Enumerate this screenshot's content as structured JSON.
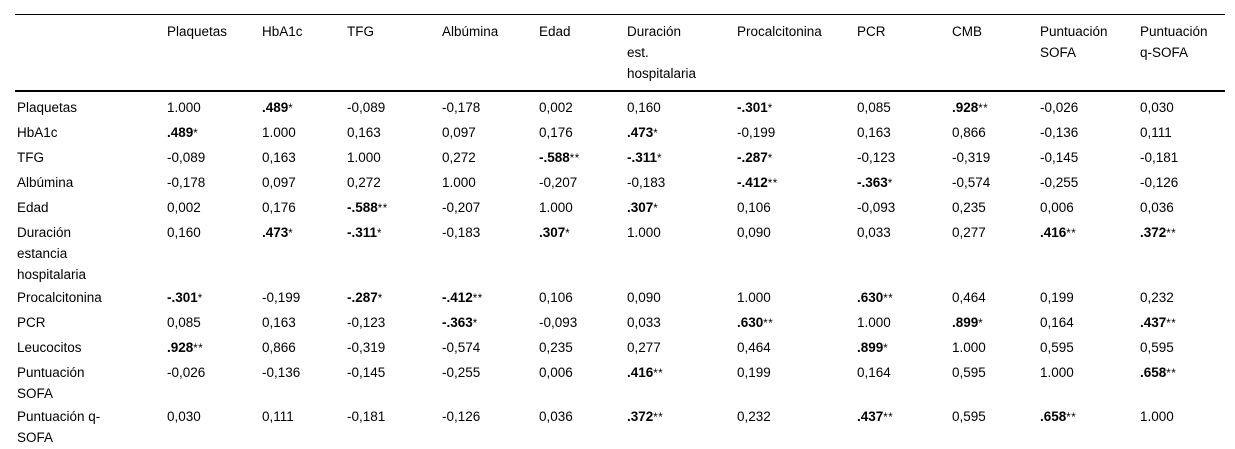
{
  "table": {
    "columns": [
      "",
      "Plaquetas",
      "HbA1c",
      "TFG",
      "Albúmina",
      "Edad",
      "Duración est. hospitalaria",
      "Procalcitonina",
      "PCR",
      "CMB",
      "Puntuación SOFA",
      "Puntuación q-SOFA"
    ],
    "rows": [
      {
        "label": "Plaquetas",
        "cells": [
          {
            "v": "1.000"
          },
          {
            "v": ".489",
            "s": "*",
            "b": true
          },
          {
            "v": "-0,089"
          },
          {
            "v": "-0,178"
          },
          {
            "v": "0,002"
          },
          {
            "v": "0,160"
          },
          {
            "v": "-.301",
            "s": "*",
            "b": true
          },
          {
            "v": "0,085"
          },
          {
            "v": ".928",
            "s": "**",
            "b": true
          },
          {
            "v": "-0,026"
          },
          {
            "v": "0,030"
          }
        ]
      },
      {
        "label": "HbA1c",
        "cells": [
          {
            "v": ".489",
            "s": "*",
            "b": true
          },
          {
            "v": "1.000"
          },
          {
            "v": "0,163"
          },
          {
            "v": "0,097"
          },
          {
            "v": "0,176"
          },
          {
            "v": ".473",
            "s": "*",
            "b": true
          },
          {
            "v": "-0,199"
          },
          {
            "v": "0,163"
          },
          {
            "v": "0,866"
          },
          {
            "v": "-0,136"
          },
          {
            "v": "0,111"
          }
        ]
      },
      {
        "label": "TFG",
        "cells": [
          {
            "v": "-0,089"
          },
          {
            "v": "0,163"
          },
          {
            "v": "1.000"
          },
          {
            "v": "0,272"
          },
          {
            "v": "-.588",
            "s": "**",
            "b": true
          },
          {
            "v": "-.311",
            "s": "*",
            "b": true
          },
          {
            "v": "-.287",
            "s": "*",
            "b": true
          },
          {
            "v": "-0,123"
          },
          {
            "v": "-0,319"
          },
          {
            "v": "-0,145"
          },
          {
            "v": "-0,181"
          }
        ]
      },
      {
        "label": "Albúmina",
        "cells": [
          {
            "v": "-0,178"
          },
          {
            "v": "0,097"
          },
          {
            "v": "0,272"
          },
          {
            "v": "1.000"
          },
          {
            "v": "-0,207"
          },
          {
            "v": "-0,183"
          },
          {
            "v": "-.412",
            "s": "**",
            "b": true
          },
          {
            "v": "-.363",
            "s": "*",
            "b": true
          },
          {
            "v": "-0,574"
          },
          {
            "v": "-0,255"
          },
          {
            "v": "-0,126"
          }
        ]
      },
      {
        "label": "Edad",
        "cells": [
          {
            "v": "0,002"
          },
          {
            "v": "0,176"
          },
          {
            "v": "-.588",
            "s": "**",
            "b": true
          },
          {
            "v": "-0,207"
          },
          {
            "v": "1.000"
          },
          {
            "v": ".307",
            "s": "*",
            "b": true
          },
          {
            "v": "0,106"
          },
          {
            "v": "-0,093"
          },
          {
            "v": "0,235"
          },
          {
            "v": "0,006"
          },
          {
            "v": "0,036"
          }
        ]
      },
      {
        "label": "Duración estancia hospitalaria",
        "cells": [
          {
            "v": "0,160"
          },
          {
            "v": ".473",
            "s": "*",
            "b": true
          },
          {
            "v": "-.311",
            "s": "*",
            "b": true
          },
          {
            "v": "-0,183"
          },
          {
            "v": ".307",
            "s": "*",
            "b": true
          },
          {
            "v": "1.000"
          },
          {
            "v": "0,090"
          },
          {
            "v": "0,033"
          },
          {
            "v": "0,277"
          },
          {
            "v": ".416",
            "s": "**",
            "b": true
          },
          {
            "v": ".372",
            "s": "**",
            "b": true
          }
        ]
      },
      {
        "label": "Procalcitonina",
        "cells": [
          {
            "v": "-.301",
            "s": "*",
            "b": true
          },
          {
            "v": "-0,199"
          },
          {
            "v": "-.287",
            "s": "*",
            "b": true
          },
          {
            "v": "-.412",
            "s": "**",
            "b": true
          },
          {
            "v": "0,106"
          },
          {
            "v": "0,090"
          },
          {
            "v": "1.000"
          },
          {
            "v": ".630",
            "s": "**",
            "b": true
          },
          {
            "v": "0,464"
          },
          {
            "v": "0,199"
          },
          {
            "v": "0,232"
          }
        ]
      },
      {
        "label": "PCR",
        "cells": [
          {
            "v": "0,085"
          },
          {
            "v": "0,163"
          },
          {
            "v": "-0,123"
          },
          {
            "v": "-.363",
            "s": "*",
            "b": true
          },
          {
            "v": "-0,093"
          },
          {
            "v": "0,033"
          },
          {
            "v": ".630",
            "s": "**",
            "b": true
          },
          {
            "v": "1.000"
          },
          {
            "v": ".899",
            "s": "*",
            "b": true
          },
          {
            "v": "0,164"
          },
          {
            "v": ".437",
            "s": "**",
            "b": true
          }
        ]
      },
      {
        "label": "Leucocitos",
        "cells": [
          {
            "v": ".928",
            "s": "**",
            "b": true
          },
          {
            "v": "0,866"
          },
          {
            "v": "-0,319"
          },
          {
            "v": "-0,574"
          },
          {
            "v": "0,235"
          },
          {
            "v": "0,277"
          },
          {
            "v": "0,464"
          },
          {
            "v": ".899",
            "s": "*",
            "b": true
          },
          {
            "v": "1.000"
          },
          {
            "v": "0,595"
          },
          {
            "v": "0,595"
          }
        ]
      },
      {
        "label": "Puntuación SOFA",
        "cells": [
          {
            "v": "-0,026"
          },
          {
            "v": "-0,136"
          },
          {
            "v": "-0,145"
          },
          {
            "v": "-0,255"
          },
          {
            "v": "0,006"
          },
          {
            "v": ".416",
            "s": "**",
            "b": true
          },
          {
            "v": "0,199"
          },
          {
            "v": "0,164"
          },
          {
            "v": "0,595"
          },
          {
            "v": "1.000"
          },
          {
            "v": ".658",
            "s": "**",
            "b": true
          }
        ]
      },
      {
        "label": "Puntuación q-SOFA",
        "cells": [
          {
            "v": "0,030"
          },
          {
            "v": "0,111"
          },
          {
            "v": "-0,181"
          },
          {
            "v": "-0,126"
          },
          {
            "v": "0,036"
          },
          {
            "v": ".372",
            "s": "**",
            "b": true
          },
          {
            "v": "0,232"
          },
          {
            "v": ".437",
            "s": "**",
            "b": true
          },
          {
            "v": "0,595"
          },
          {
            "v": ".658",
            "s": "**",
            "b": true
          },
          {
            "v": "1.000"
          }
        ]
      }
    ]
  }
}
